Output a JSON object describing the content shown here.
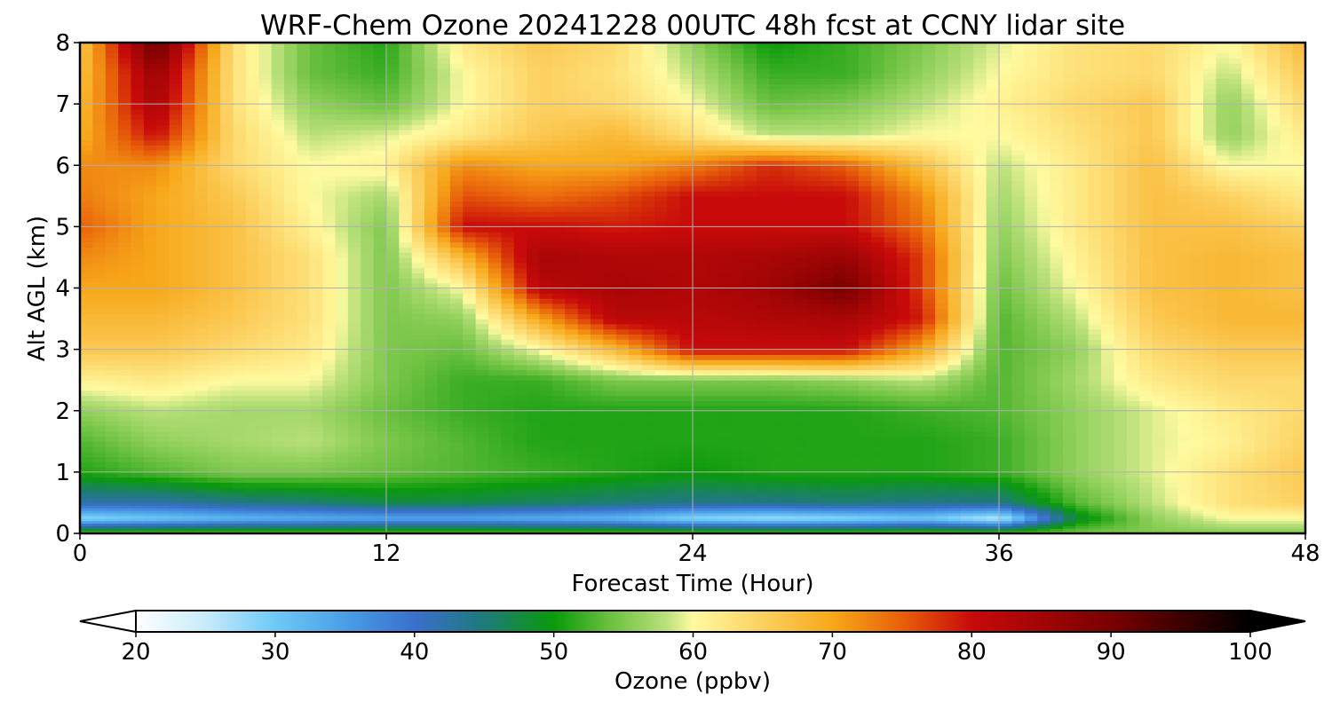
{
  "chart_data": {
    "type": "heatmap",
    "title": "WRF-Chem Ozone  20241228 00UTC 48h fcst at CCNY lidar site",
    "xlabel": "Forecast Time (Hour)",
    "ylabel": "Alt AGL (km)",
    "xlim": [
      0,
      48
    ],
    "ylim": [
      0,
      8
    ],
    "x_ticks": [
      "0",
      "12",
      "24",
      "36",
      "48"
    ],
    "y_ticks": [
      "0",
      "1",
      "2",
      "3",
      "4",
      "5",
      "6",
      "7",
      "8"
    ],
    "grid": true,
    "colorbar": {
      "label": "Ozone  (ppbv)",
      "ticks": [
        "20",
        "30",
        "40",
        "50",
        "60",
        "70",
        "80",
        "90",
        "100"
      ],
      "range": [
        20,
        100
      ],
      "extend": "both",
      "stops": [
        {
          "v": 20,
          "color": "#ffffff"
        },
        {
          "v": 25,
          "color": "#c8ebfb"
        },
        {
          "v": 30,
          "color": "#6ec9f7"
        },
        {
          "v": 35,
          "color": "#4a9fe6"
        },
        {
          "v": 40,
          "color": "#3a6fcd"
        },
        {
          "v": 45,
          "color": "#1e7a7a"
        },
        {
          "v": 50,
          "color": "#0a9a0a"
        },
        {
          "v": 54,
          "color": "#6ac03e"
        },
        {
          "v": 58,
          "color": "#b9e07a"
        },
        {
          "v": 60,
          "color": "#fffaa0"
        },
        {
          "v": 65,
          "color": "#fcd060"
        },
        {
          "v": 70,
          "color": "#f7a81a"
        },
        {
          "v": 75,
          "color": "#e8600a"
        },
        {
          "v": 80,
          "color": "#c80a0a"
        },
        {
          "v": 90,
          "color": "#7a0000"
        },
        {
          "v": 100,
          "color": "#000000"
        }
      ]
    },
    "x": [
      0,
      3,
      6,
      9,
      12,
      15,
      18,
      21,
      24,
      27,
      30,
      33,
      36,
      39,
      42,
      45,
      48
    ],
    "y": [
      0,
      0.25,
      0.5,
      1,
      1.5,
      2,
      2.5,
      3,
      3.5,
      4,
      4.5,
      5,
      5.5,
      6,
      6.5,
      7,
      7.5,
      8
    ],
    "z": [
      [
        55,
        55,
        55,
        55,
        55,
        55,
        55,
        55,
        55,
        55,
        55,
        55,
        55,
        55,
        55,
        55,
        55
      ],
      [
        28,
        30,
        32,
        33,
        34,
        34,
        33,
        32,
        28,
        27,
        28,
        30,
        25,
        48,
        56,
        60,
        60
      ],
      [
        42,
        42,
        44,
        45,
        47,
        47,
        46,
        45,
        44,
        44,
        45,
        44,
        44,
        53,
        58,
        63,
        65
      ],
      [
        51,
        53,
        55,
        55,
        54,
        53,
        52,
        51,
        50,
        51,
        51,
        51,
        52,
        56,
        59,
        63,
        66
      ],
      [
        53,
        56,
        57,
        58,
        55,
        53,
        51,
        51,
        51,
        51,
        51,
        51,
        52,
        56,
        59,
        61,
        65
      ],
      [
        56,
        58,
        57,
        57,
        54,
        52,
        51,
        51,
        51,
        51,
        51,
        52,
        53,
        56,
        59,
        62,
        64
      ],
      [
        61,
        62,
        60,
        60,
        55,
        52,
        52,
        55,
        55,
        55,
        56,
        58,
        53,
        57,
        62,
        64,
        64
      ],
      [
        66,
        66,
        64,
        62,
        55,
        54,
        60,
        68,
        80,
        80,
        80,
        70,
        53,
        56,
        64,
        66,
        66
      ],
      [
        68,
        68,
        66,
        63,
        55,
        56,
        70,
        82,
        82,
        83,
        84,
        79,
        53,
        58,
        66,
        68,
        68
      ],
      [
        70,
        70,
        67,
        63,
        55,
        60,
        82,
        84,
        83,
        85,
        90,
        77,
        54,
        60,
        67,
        68,
        67
      ],
      [
        72,
        70,
        67,
        63,
        55,
        68,
        84,
        83,
        83,
        84,
        86,
        77,
        55,
        61,
        67,
        68,
        67
      ],
      [
        75,
        70,
        67,
        61,
        55,
        80,
        80,
        79,
        80,
        80,
        80,
        74,
        56,
        62,
        67,
        67,
        65
      ],
      [
        73,
        70,
        66,
        60,
        57,
        76,
        74,
        76,
        80,
        80,
        80,
        72,
        57,
        62,
        67,
        65,
        62
      ],
      [
        72,
        72,
        64,
        60,
        61,
        72,
        70,
        70,
        73,
        78,
        75,
        67,
        58,
        62,
        67,
        60,
        60
      ],
      [
        69,
        80,
        64,
        58,
        59,
        62,
        66,
        68,
        63,
        58,
        58,
        60,
        60,
        63,
        66,
        56,
        62
      ],
      [
        68,
        84,
        63,
        56,
        54,
        60,
        65,
        64,
        60,
        54,
        55,
        58,
        61,
        64,
        66,
        56,
        64
      ],
      [
        67,
        86,
        63,
        54,
        52,
        60,
        65,
        63,
        58,
        52,
        52,
        56,
        60,
        63,
        64,
        58,
        66
      ],
      [
        66,
        92,
        63,
        54,
        51,
        62,
        66,
        64,
        56,
        50,
        52,
        55,
        59,
        63,
        64,
        60,
        68
      ]
    ]
  }
}
